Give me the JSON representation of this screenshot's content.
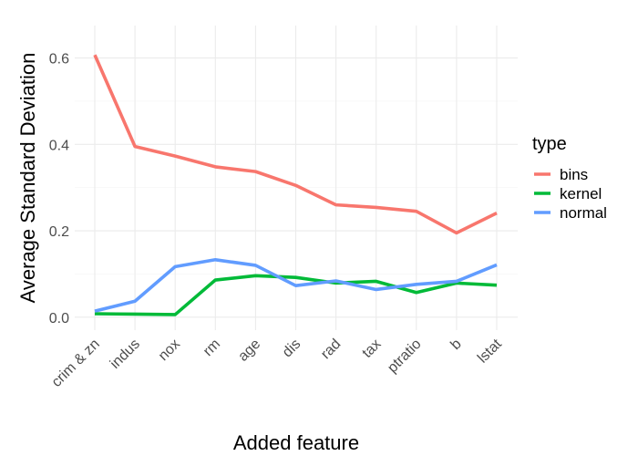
{
  "chart_data": {
    "type": "line",
    "xlabel": "Added feature",
    "ylabel": "Average Standard Deviation",
    "categories": [
      "crim & zn",
      "indus",
      "nox",
      "rm",
      "age",
      "dis",
      "rad",
      "tax",
      "ptratio",
      "b",
      "lstat"
    ],
    "yticks": [
      0.0,
      0.2,
      0.4,
      0.6
    ],
    "ytick_labels": [
      "0.0",
      "0.2",
      "0.4",
      "0.6"
    ],
    "ylim": [
      -0.03,
      0.675
    ],
    "grid": true,
    "legend": {
      "title": "type",
      "position": "right"
    },
    "series": [
      {
        "name": "bins",
        "color": "#F8766D",
        "values": [
          0.607,
          0.395,
          0.373,
          0.348,
          0.337,
          0.305,
          0.26,
          0.254,
          0.245,
          0.195,
          0.241
        ]
      },
      {
        "name": "kernel",
        "color": "#00BA38",
        "values": [
          0.008,
          0.007,
          0.006,
          0.086,
          0.096,
          0.092,
          0.079,
          0.083,
          0.057,
          0.079,
          0.074
        ]
      },
      {
        "name": "normal",
        "color": "#619CFF",
        "values": [
          0.014,
          0.037,
          0.117,
          0.133,
          0.12,
          0.073,
          0.084,
          0.064,
          0.076,
          0.083,
          0.121
        ]
      }
    ]
  }
}
